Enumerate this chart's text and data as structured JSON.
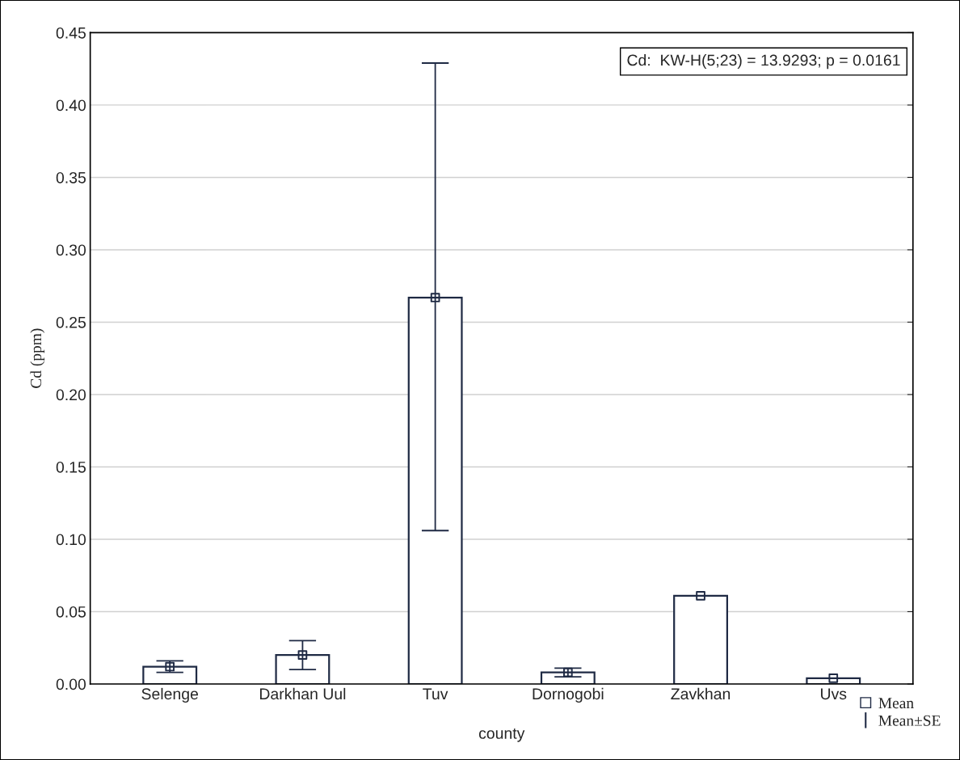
{
  "chart_data": {
    "type": "bar",
    "xlabel": "county",
    "ylabel": "Cd (ppm)",
    "categories": [
      "Selenge",
      "Darkhan Uul",
      "Tuv",
      "Dornogobi",
      "Zavkhan",
      "Uvs"
    ],
    "series": [
      {
        "color": "#ffffff",
        "values": [
          0.012,
          0.02,
          0.267,
          0.008,
          0.061,
          0.004
        ],
        "errors": [
          [
            0.008,
            0.016
          ],
          [
            0.01,
            0.03
          ],
          [
            0.106,
            0.429
          ],
          [
            0.005,
            0.011
          ],
          null,
          null
        ]
      },
      {
        "type": "scatter",
        "name": "Mean",
        "color": "#1f2a44",
        "x": [
          "Selenge",
          "Darkhan Uul",
          "Tuv",
          "Dornogobi",
          "Zavkhan",
          "Uvs"
        ],
        "values": [
          0.012,
          0.02,
          0.267,
          0.008,
          0.061,
          0.004
        ]
      }
    ],
    "marker": "square",
    "ylim": [
      0,
      0.45
    ],
    "yticks": [
      {
        "value": 0,
        "label": "0.00"
      },
      0.05,
      {
        "value": 0.1,
        "label": "0.10"
      },
      0.15,
      {
        "value": 0.2,
        "label": "0.20"
      },
      0.25,
      {
        "value": 0.3,
        "label": "0.30"
      },
      0.35,
      {
        "value": 0.4,
        "label": "0.40"
      },
      0.45
    ],
    "grid": "y",
    "legend": "bottom right",
    "annotations": [
      "Cd:  KW-H(5;23) = 13.9293; p = 0.0161",
      "Mean±SE"
    ]
  }
}
